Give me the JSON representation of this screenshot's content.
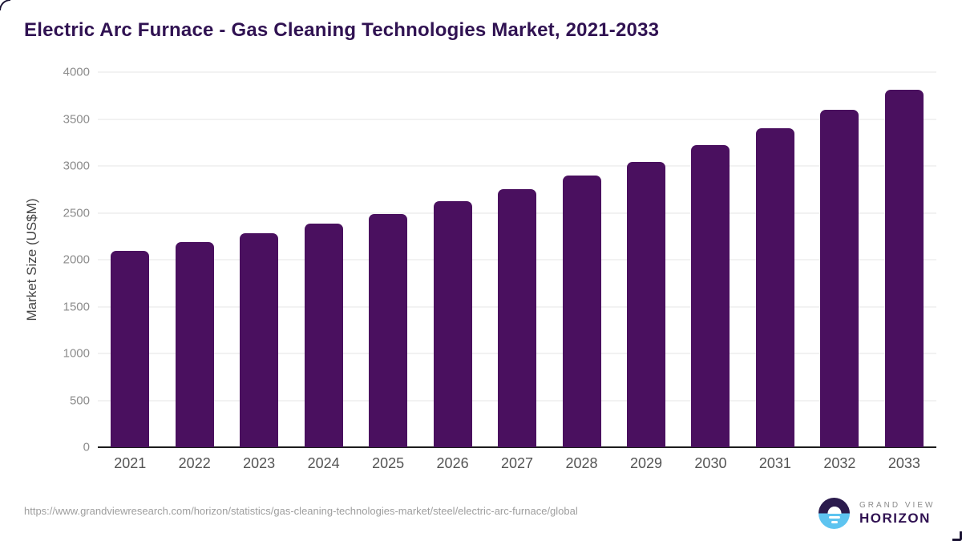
{
  "title": "Electric Arc Furnace - Gas Cleaning Technologies Market, 2021-2033",
  "footer": {
    "source_url": "https://www.grandviewresearch.com/horizon/statistics/gas-cleaning-technologies-market/steel/electric-arc-furnace/global",
    "logo": {
      "top_text": "GRAND VIEW",
      "bottom_text": "HORIZON"
    }
  },
  "colors": {
    "title": "#301252",
    "bar": "#4a105f",
    "gridline": "#e4e4e4",
    "axis_line": "#1c1c1c",
    "tick_label": "#8c8c8c",
    "year_label": "#545454",
    "axis_label": "#454545",
    "url": "#9e9e9e",
    "logo_navy": "#2b1b4d",
    "logo_blue": "#5ec4f0"
  },
  "chart_data": {
    "type": "bar",
    "title": "Electric Arc Furnace - Gas Cleaning Technologies Market, 2021-2033",
    "xlabel": "",
    "ylabel": "Market Size (US$M)",
    "ylim": [
      0,
      4000
    ],
    "ytick_step": 500,
    "grid": "horizontal",
    "legend_position": "none",
    "bar_color": "#4a105f",
    "categories": [
      "2021",
      "2022",
      "2023",
      "2024",
      "2025",
      "2026",
      "2027",
      "2028",
      "2029",
      "2030",
      "2031",
      "2032",
      "2033"
    ],
    "values": [
      2090,
      2185,
      2280,
      2385,
      2490,
      2625,
      2750,
      2895,
      3045,
      3225,
      3400,
      3595,
      3815
    ]
  }
}
